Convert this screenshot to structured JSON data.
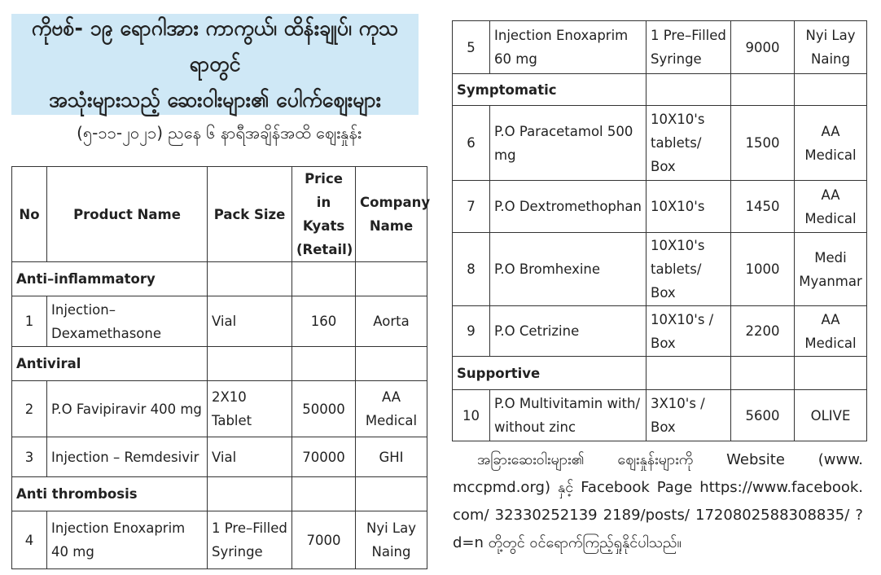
{
  "title_line1": "ကိုဗစ်- ၁၉ ရောဂါအား ကာကွယ်၊ ထိန်းချုပ်၊ ကုသရာတွင်",
  "title_line2": "အသုံးများသည့် ဆေးဝါးများ၏ ပေါက်ဈေးများ",
  "subtitle": "(၅-၁၁-၂၀၂၁) ညနေ ၆ နာရီအချိန်အထိ ဈေးနှုန်း",
  "headers": {
    "no": "No",
    "product": "Product Name",
    "pack": "Pack Size",
    "price": "Price in Kyats (Retail)",
    "company": "Company Name"
  },
  "categories": [
    "Anti–inflammatory",
    "Antiviral",
    "Anti thrombosis",
    "Symptomatic",
    "Supportive"
  ],
  "rows": [
    {
      "no": "1",
      "product": "Injection– Dexamethasone",
      "pack": "Vial",
      "price": "160",
      "company": "Aorta"
    },
    {
      "no": "2",
      "product": "P.O Favipiravir 400 mg",
      "pack": "2X10 Tablet",
      "price": "50000",
      "company": "AA Medical"
    },
    {
      "no": "3",
      "product": "Injection – Remdesivir",
      "pack": "Vial",
      "price": "70000",
      "company": "GHI"
    },
    {
      "no": "4",
      "product": "Injection Enoxaprim 40 mg",
      "pack": "1 Pre–Filled Syringe",
      "price": "7000",
      "company": "Nyi Lay Naing"
    },
    {
      "no": "5",
      "product": "Injection Enoxaprim 60 mg",
      "pack": "1 Pre–Filled Syringe",
      "price": "9000",
      "company": "Nyi Lay Naing"
    },
    {
      "no": "6",
      "product": "P.O Paracetamol 500 mg",
      "pack": "10X10's tablets/ Box",
      "price": "1500",
      "company": "AA Medical"
    },
    {
      "no": "7",
      "product": "P.O Dextromethophan",
      "pack": "10X10's",
      "price": "1450",
      "company": "AA Medical"
    },
    {
      "no": "8",
      "product": "P.O Bromhexine",
      "pack": "10X10's tablets/ Box",
      "price": "1000",
      "company": "Medi Myanmar"
    },
    {
      "no": "9",
      "product": "P.O Cetrizine",
      "pack": "10X10's / Box",
      "price": "2200",
      "company": "AA Medical"
    },
    {
      "no": "10",
      "product": "P.O Multivitamin with/ without zinc",
      "pack": "3X10's / Box",
      "price": "5600",
      "company": "OLIVE"
    }
  ],
  "footer": "အခြားဆေးဝါးများ၏ ဈေးနှုန်းများကို Website (www. mccpmd.org) နှင့် Facebook Page https://www.facebook. com/ 32330252139 2189/posts/ 1720802588308835/ ?d=n တို့တွင် ဝင်ရောက်ကြည့်ရှုနိုင်ပါသည်။",
  "colors": {
    "title_bg": "#cfe8f6",
    "border": "#333333"
  }
}
